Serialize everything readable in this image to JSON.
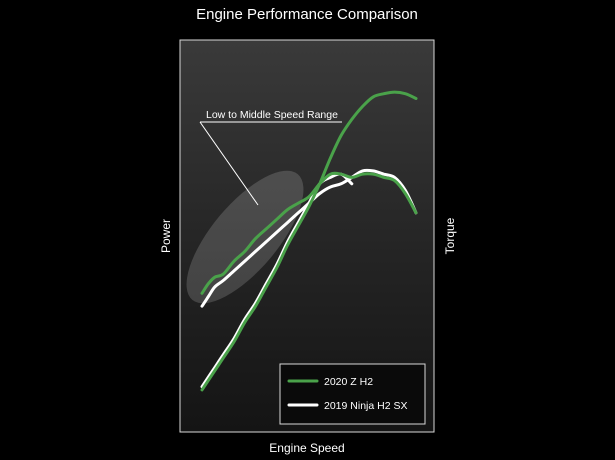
{
  "chart_data": {
    "type": "line",
    "title": "Engine Performance Comparison",
    "xlabel": "Engine Speed",
    "ylabel_left": "Power",
    "ylabel_right": "Torque",
    "axis_numbers_shown": false,
    "grid": false,
    "legend_position": "bottom-right",
    "annotation": {
      "text": "Low to Middle Speed Range",
      "x_range": [
        0,
        0.4
      ],
      "y_range": [
        0.3,
        0.7
      ]
    },
    "series": [
      {
        "name": "2020 Z H2",
        "color": "#4aa24a",
        "power": {
          "x": [
            0.0,
            0.05,
            0.1,
            0.15,
            0.2,
            0.25,
            0.3,
            0.35,
            0.4,
            0.45,
            0.5,
            0.55,
            0.6,
            0.65,
            0.7,
            0.75,
            0.8,
            0.85,
            0.9,
            0.95,
            1.0
          ],
          "y": [
            0.05,
            0.1,
            0.15,
            0.2,
            0.26,
            0.31,
            0.37,
            0.43,
            0.5,
            0.56,
            0.62,
            0.69,
            0.77,
            0.84,
            0.89,
            0.93,
            0.96,
            0.97,
            0.975,
            0.97,
            0.955
          ]
        },
        "torque": {
          "x": [
            0.0,
            0.03,
            0.06,
            0.1,
            0.15,
            0.2,
            0.25,
            0.3,
            0.35,
            0.4,
            0.45,
            0.5,
            0.55,
            0.6,
            0.65,
            0.7,
            0.75,
            0.8,
            0.85,
            0.9,
            0.95,
            1.0
          ],
          "y": [
            0.35,
            0.38,
            0.4,
            0.41,
            0.45,
            0.48,
            0.52,
            0.55,
            0.58,
            0.61,
            0.63,
            0.65,
            0.69,
            0.72,
            0.72,
            0.71,
            0.72,
            0.72,
            0.71,
            0.7,
            0.66,
            0.6
          ]
        }
      },
      {
        "name": "2019 Ninja H2 SX",
        "color": "#ffffff",
        "power": {
          "x": [
            0.0,
            0.05,
            0.1,
            0.15,
            0.2,
            0.25,
            0.3,
            0.35,
            0.4,
            0.45,
            0.5,
            0.55,
            0.6,
            0.65,
            0.7
          ],
          "y": [
            0.06,
            0.11,
            0.16,
            0.21,
            0.27,
            0.32,
            0.38,
            0.44,
            0.51,
            0.57,
            0.63,
            0.69,
            0.71,
            0.72,
            0.69
          ]
        },
        "torque": {
          "x": [
            0.0,
            0.03,
            0.06,
            0.1,
            0.15,
            0.2,
            0.25,
            0.3,
            0.35,
            0.4,
            0.45,
            0.5,
            0.55,
            0.6,
            0.65,
            0.7,
            0.75,
            0.8,
            0.85,
            0.9,
            0.95,
            1.0
          ],
          "y": [
            0.31,
            0.34,
            0.37,
            0.39,
            0.42,
            0.45,
            0.48,
            0.51,
            0.54,
            0.57,
            0.6,
            0.63,
            0.66,
            0.68,
            0.69,
            0.71,
            0.73,
            0.73,
            0.72,
            0.71,
            0.67,
            0.6
          ]
        }
      }
    ]
  }
}
